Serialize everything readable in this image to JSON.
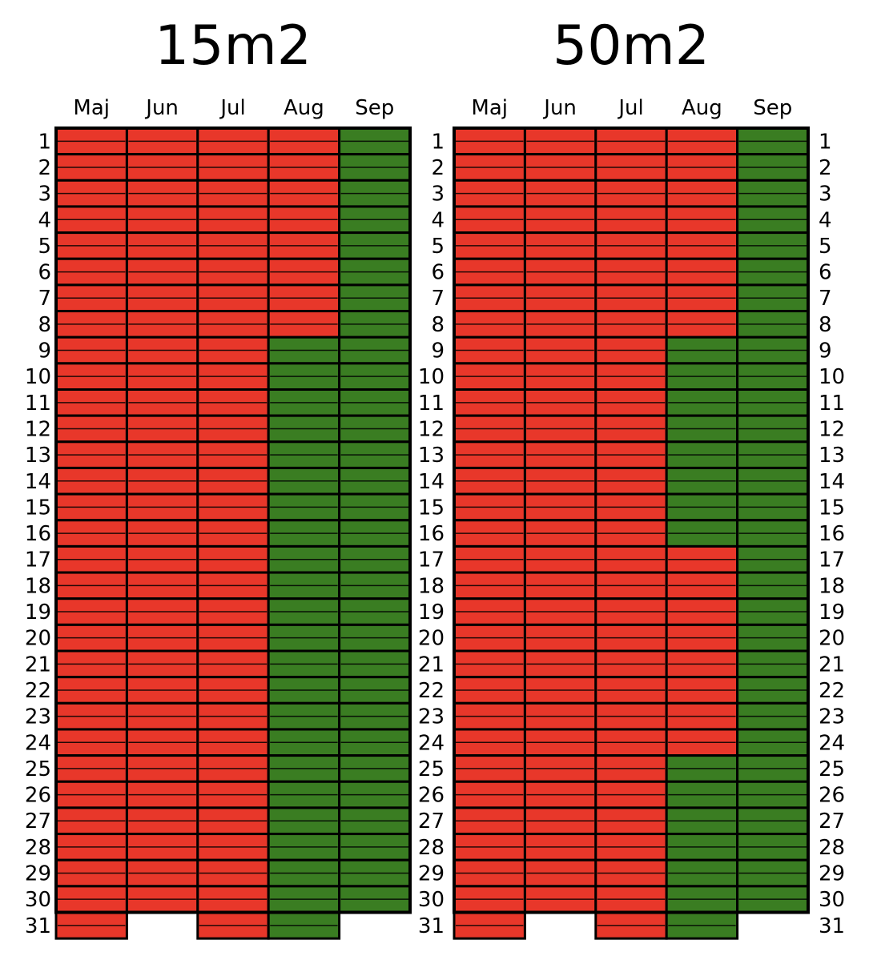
{
  "chart_data": [
    {
      "type": "heatmap",
      "title": "15m2",
      "months": [
        "Maj",
        "Jun",
        "Jul",
        "Aug",
        "Sep"
      ],
      "days": [
        1,
        2,
        3,
        4,
        5,
        6,
        7,
        8,
        9,
        10,
        11,
        12,
        13,
        14,
        15,
        16,
        17,
        18,
        19,
        20,
        21,
        22,
        23,
        24,
        25,
        26,
        27,
        28,
        29,
        30,
        31
      ],
      "days_in_month": [
        31,
        30,
        31,
        31,
        30
      ],
      "colors": {
        "red": "#e8372a",
        "green": "#3a7d22"
      },
      "columns": [
        {
          "month": "Maj",
          "red_days": "1-31",
          "green_days": ""
        },
        {
          "month": "Jun",
          "red_days": "1-30",
          "green_days": ""
        },
        {
          "month": "Jul",
          "red_days": "1-31",
          "green_days": ""
        },
        {
          "month": "Aug",
          "red_days": "1-8",
          "green_days": "9-31"
        },
        {
          "month": "Sep",
          "red_days": "",
          "green_days": "1-30"
        }
      ]
    },
    {
      "type": "heatmap",
      "title": "50m2",
      "months": [
        "Maj",
        "Jun",
        "Jul",
        "Aug",
        "Sep"
      ],
      "days": [
        1,
        2,
        3,
        4,
        5,
        6,
        7,
        8,
        9,
        10,
        11,
        12,
        13,
        14,
        15,
        16,
        17,
        18,
        19,
        20,
        21,
        22,
        23,
        24,
        25,
        26,
        27,
        28,
        29,
        30,
        31
      ],
      "days_in_month": [
        31,
        30,
        31,
        31,
        30
      ],
      "colors": {
        "red": "#e8372a",
        "green": "#3a7d22"
      },
      "columns": [
        {
          "month": "Maj",
          "red_days": "1-31",
          "green_days": ""
        },
        {
          "month": "Jun",
          "red_days": "1-30",
          "green_days": ""
        },
        {
          "month": "Jul",
          "red_days": "1-31",
          "green_days": ""
        },
        {
          "month": "Aug",
          "red_days": "1-8, 17-24",
          "green_days": "9-16, 25-31"
        },
        {
          "month": "Sep",
          "red_days": "",
          "green_days": "1-30"
        }
      ]
    }
  ]
}
